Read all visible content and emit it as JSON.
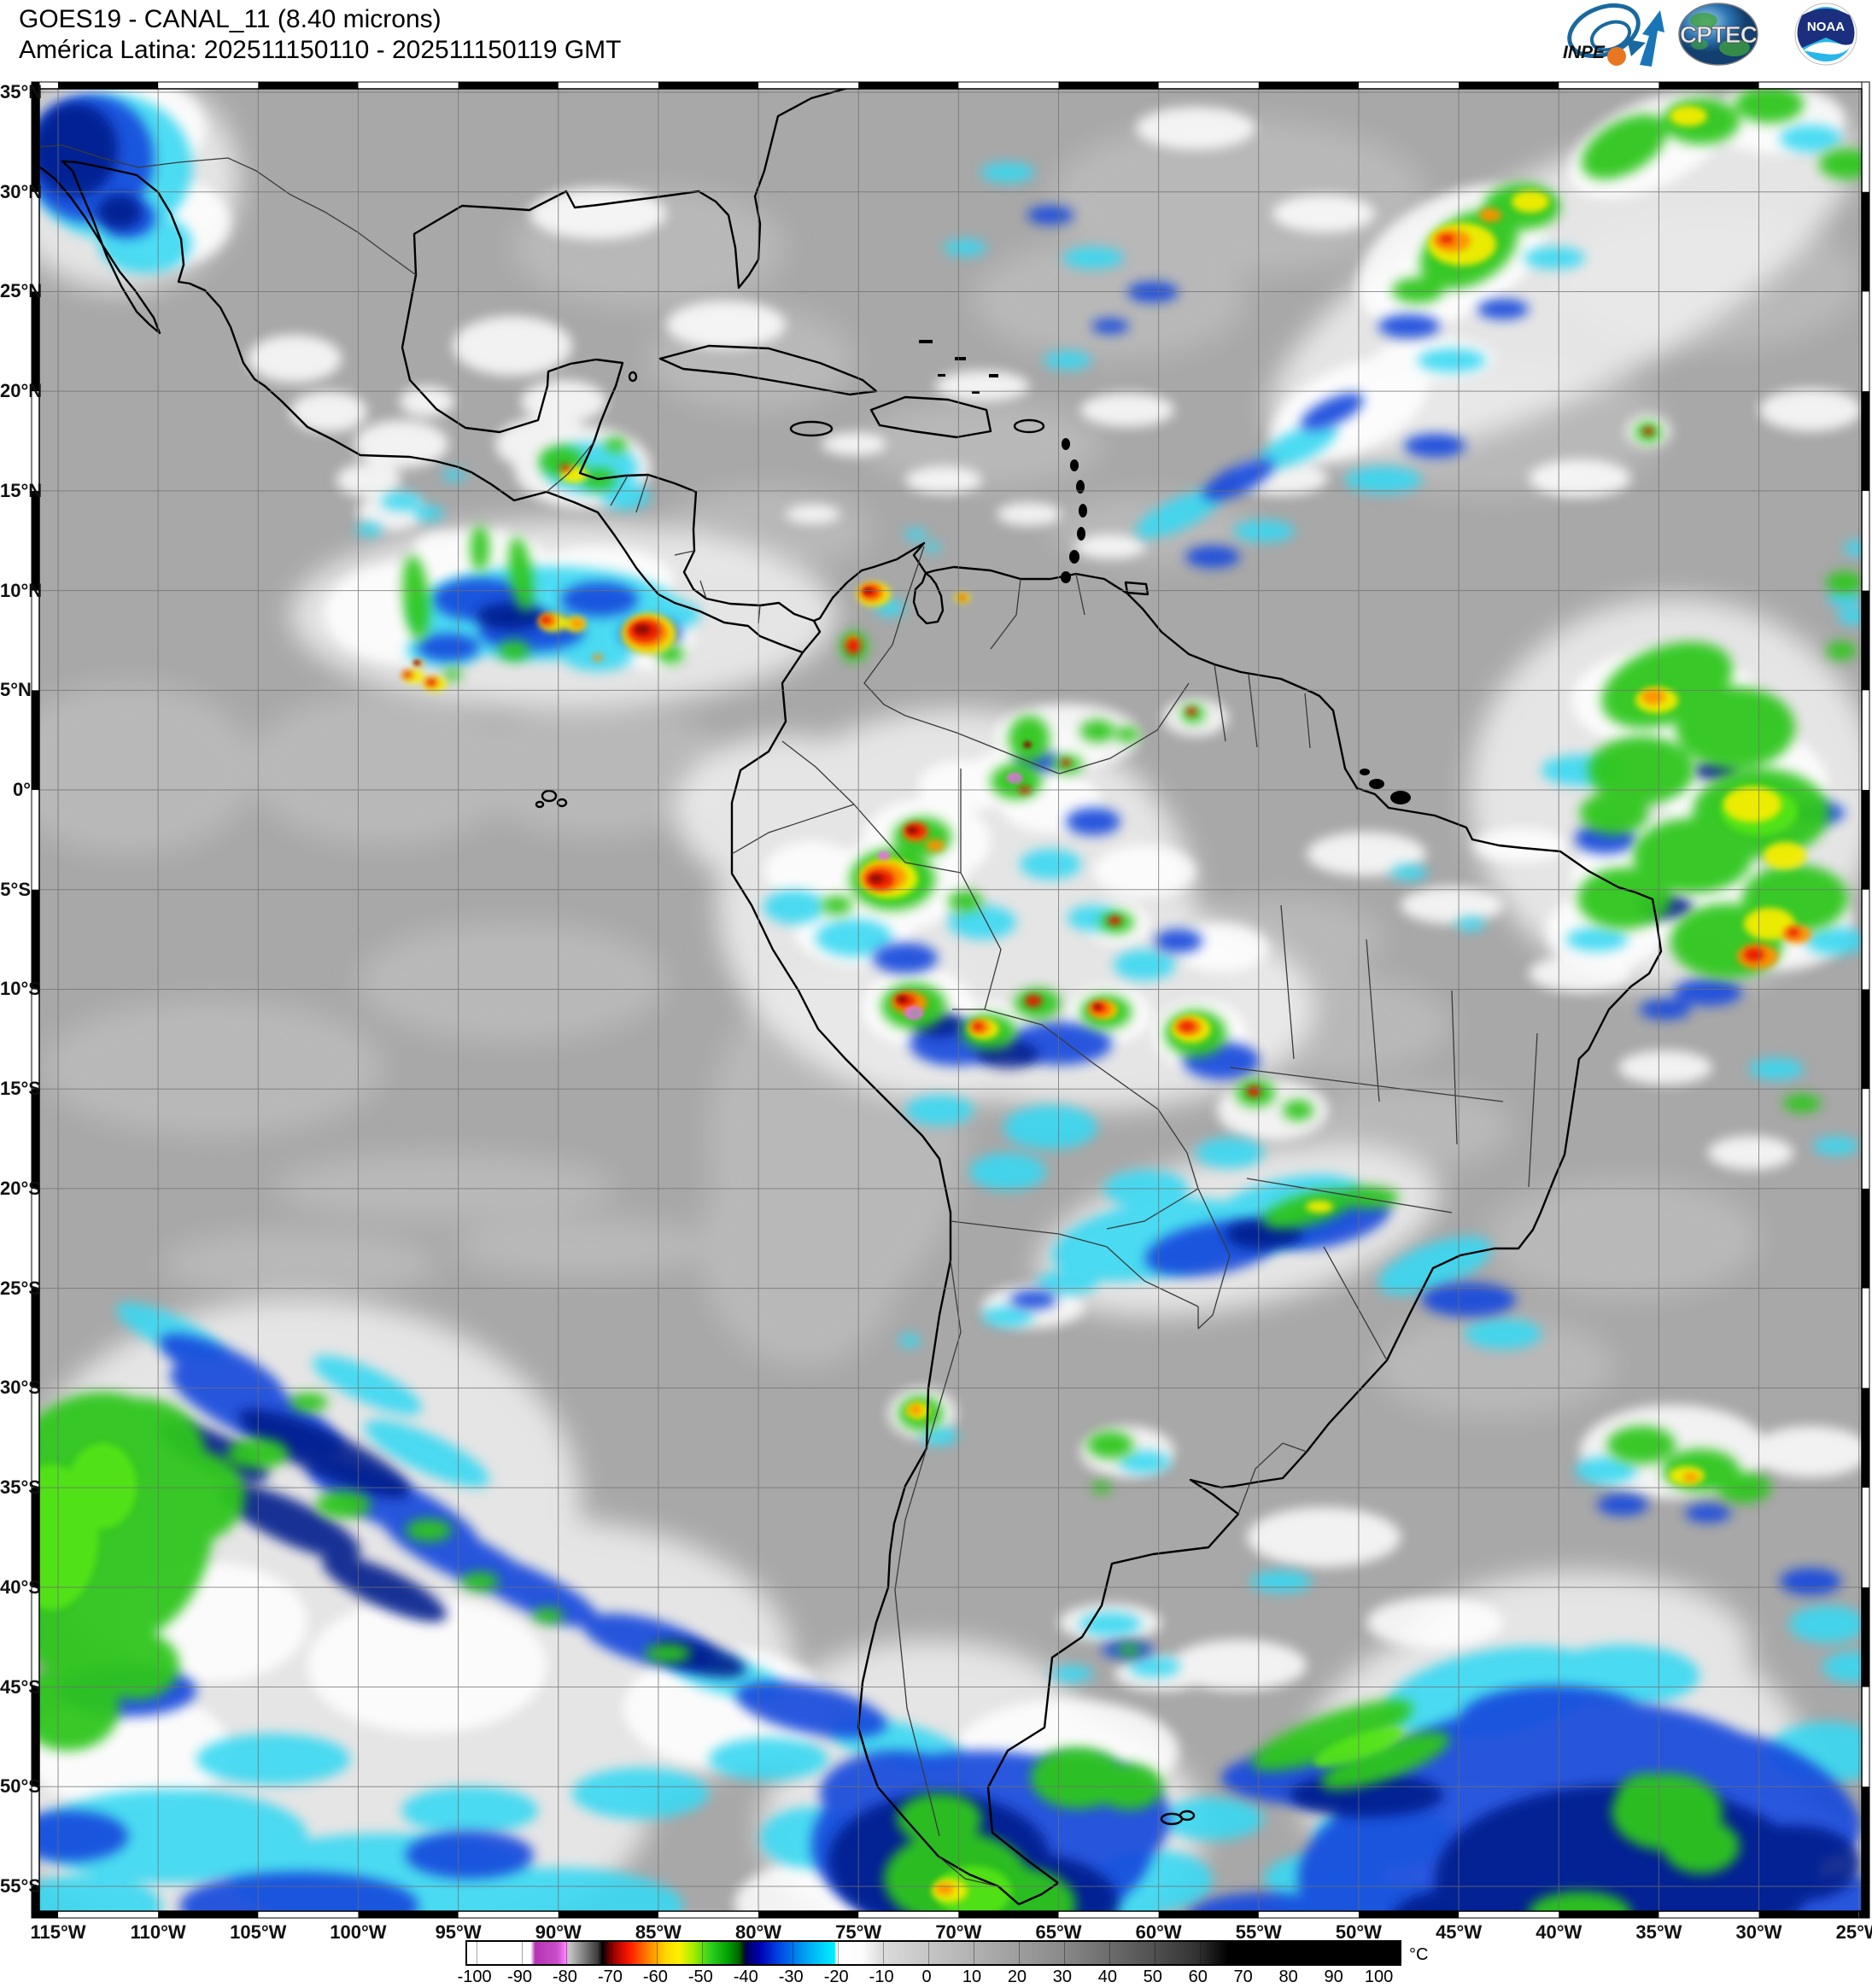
{
  "header": {
    "title_line1": "GOES19 - CANAL_11 (8.40 microns)",
    "title_line2": "América Latina: 202511150110 - 202511150119 GMT",
    "logos": {
      "inpe": "INPE",
      "cptec": "CPTEC",
      "noaa": "NOAA"
    }
  },
  "map": {
    "satellite": "GOES19",
    "channel": "CANAL_11 (8.40 microns)",
    "region": "América Latina",
    "time_range_gmt": "202511150110 - 202511150119",
    "lat_labels": [
      "35°N",
      "30°N",
      "25°N",
      "20°N",
      "15°N",
      "10°N",
      "5°N",
      "0°",
      "5°S",
      "10°S",
      "15°S",
      "20°S",
      "25°S",
      "30°S",
      "35°S",
      "40°S",
      "45°S",
      "50°S",
      "55°S"
    ],
    "lon_labels": [
      "115°W",
      "110°W",
      "105°W",
      "100°W",
      "95°W",
      "90°W",
      "85°W",
      "80°W",
      "75°W",
      "70°W",
      "65°W",
      "60°W",
      "55°W",
      "50°W",
      "45°W",
      "40°W",
      "35°W",
      "30°W",
      "25°W"
    ]
  },
  "colorbar": {
    "unit": "°C",
    "tick_labels": [
      "-100",
      "-90",
      "-80",
      "-70",
      "-60",
      "-50",
      "-40",
      "-30",
      "-20",
      "-10",
      "0",
      "10",
      "20",
      "30",
      "40",
      "50",
      "60",
      "70",
      "80",
      "90",
      "100"
    ],
    "scale_colors": {
      "minus100_to_minus88": "#ffffff",
      "minus87_to_minus80": "#c94fc9",
      "minus80_to_minus72": "#808080",
      "minus72_to_minus63": "#ff1800",
      "minus63_to_minus55": "#ffd800",
      "minus55_to_minus42": "#2ed020",
      "minus42_to_minus28": "#0041e0",
      "minus28_to_minus20": "#00f0ff",
      "minus20_to_minus10": "#ffffff",
      "0_to_100": "grayscale to #000000"
    }
  }
}
